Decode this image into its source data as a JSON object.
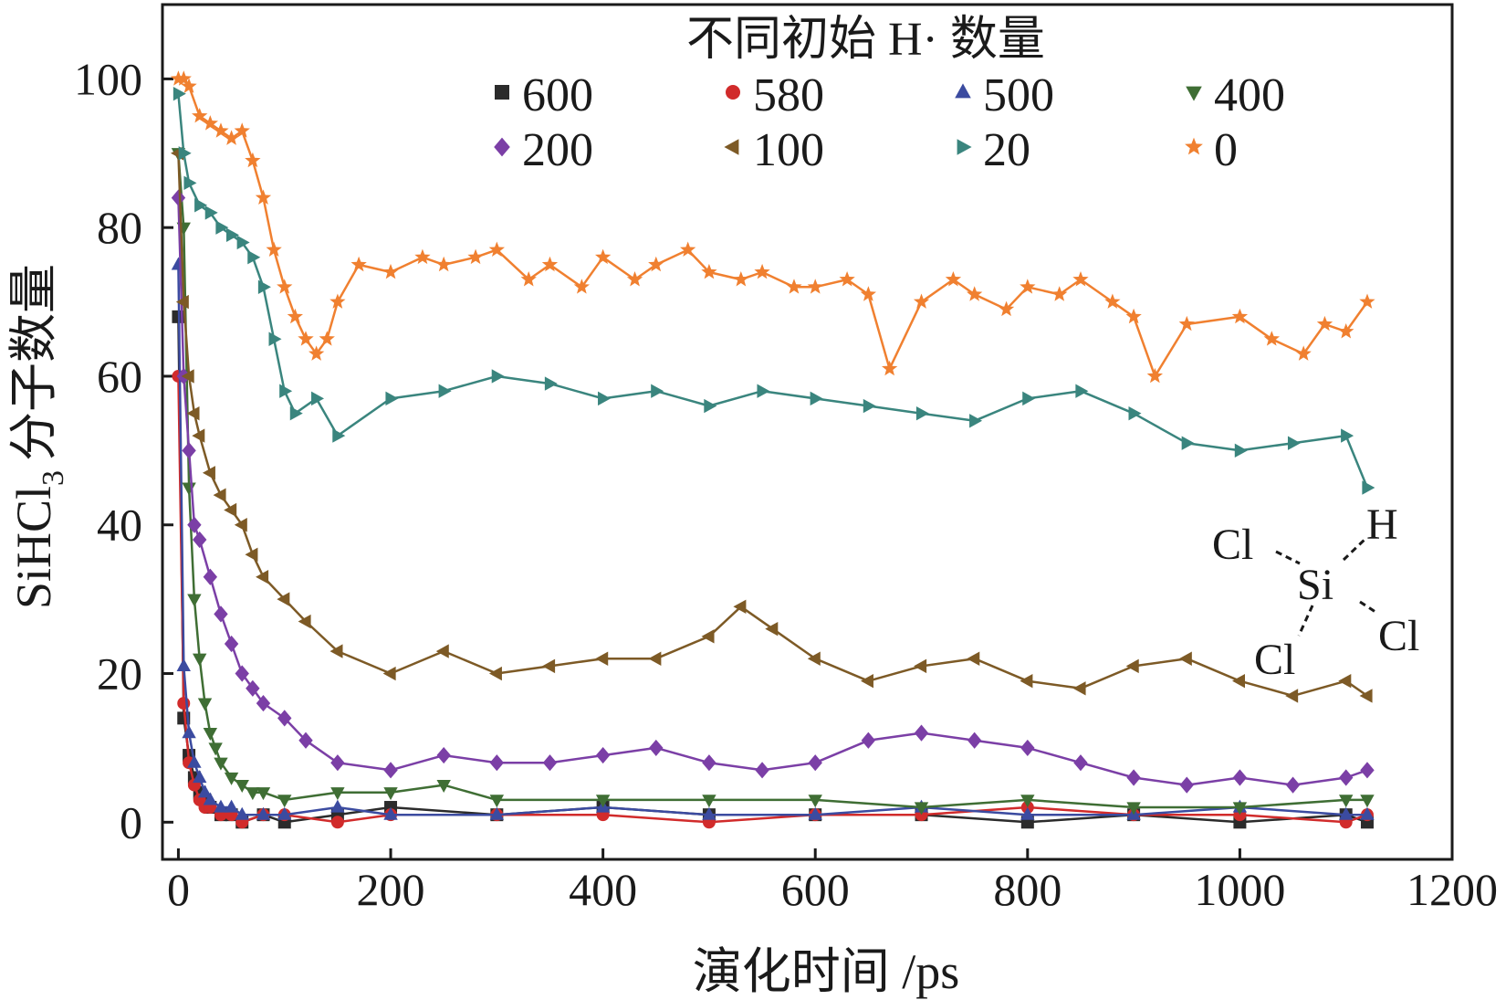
{
  "chart_data": {
    "type": "line",
    "xlabel": "演化时间 /ps",
    "ylabel": "SiHCl",
    "ylabel_subscript": "3",
    "ylabel_suffix": "分子数量",
    "xlim": [
      -15,
      1200
    ],
    "ylim": [
      -5,
      110
    ],
    "xticks": [
      0,
      200,
      400,
      600,
      800,
      1000,
      1200
    ],
    "yticks": [
      0,
      20,
      40,
      60,
      80,
      100
    ],
    "legend_title": "不同初始 H· 数量",
    "legend_position": "top-right",
    "molecule_inset": {
      "atoms": [
        "Cl",
        "H",
        "Si",
        "Cl",
        "Cl"
      ]
    },
    "series": [
      {
        "name": "600",
        "color": "#2b2b2b",
        "marker": "square",
        "x": [
          0,
          5,
          10,
          15,
          20,
          25,
          30,
          40,
          50,
          60,
          80,
          100,
          150,
          200,
          300,
          400,
          500,
          600,
          700,
          800,
          900,
          1000,
          1100,
          1120
        ],
        "y": [
          68,
          14,
          9,
          6,
          4,
          3,
          2,
          1,
          1,
          0,
          1,
          0,
          1,
          2,
          1,
          2,
          1,
          1,
          1,
          0,
          1,
          0,
          1,
          0
        ]
      },
      {
        "name": "580",
        "color": "#d12b2b",
        "marker": "circle",
        "x": [
          0,
          5,
          10,
          15,
          20,
          25,
          30,
          40,
          50,
          60,
          80,
          100,
          150,
          200,
          300,
          400,
          500,
          600,
          700,
          800,
          900,
          1000,
          1100,
          1120
        ],
        "y": [
          60,
          16,
          8,
          5,
          3,
          2,
          2,
          1,
          1,
          0,
          1,
          1,
          0,
          1,
          1,
          1,
          0,
          1,
          1,
          2,
          1,
          1,
          0,
          1
        ]
      },
      {
        "name": "500",
        "color": "#3b4ba0",
        "marker": "triangle-up",
        "x": [
          0,
          5,
          10,
          15,
          20,
          25,
          30,
          40,
          50,
          60,
          80,
          100,
          150,
          200,
          300,
          400,
          500,
          600,
          700,
          800,
          900,
          1000,
          1100,
          1120
        ],
        "y": [
          75,
          21,
          12,
          8,
          6,
          4,
          3,
          2,
          2,
          1,
          1,
          1,
          2,
          1,
          1,
          2,
          1,
          1,
          2,
          1,
          1,
          2,
          1,
          1
        ]
      },
      {
        "name": "400",
        "color": "#3f6e34",
        "marker": "triangle-down",
        "x": [
          0,
          5,
          10,
          15,
          20,
          25,
          30,
          35,
          40,
          50,
          60,
          70,
          80,
          100,
          150,
          200,
          250,
          300,
          400,
          500,
          600,
          700,
          800,
          900,
          1000,
          1100,
          1120
        ],
        "y": [
          90,
          80,
          45,
          30,
          22,
          16,
          12,
          10,
          8,
          6,
          5,
          4,
          4,
          3,
          4,
          4,
          5,
          3,
          3,
          3,
          3,
          2,
          3,
          2,
          2,
          3,
          3
        ]
      },
      {
        "name": "200",
        "color": "#7b3fa6",
        "marker": "diamond",
        "x": [
          0,
          5,
          10,
          15,
          20,
          30,
          40,
          50,
          60,
          70,
          80,
          100,
          120,
          150,
          200,
          250,
          300,
          350,
          400,
          450,
          500,
          550,
          600,
          650,
          700,
          750,
          800,
          850,
          900,
          950,
          1000,
          1050,
          1100,
          1120
        ],
        "y": [
          84,
          60,
          50,
          40,
          38,
          33,
          28,
          24,
          20,
          18,
          16,
          14,
          11,
          8,
          7,
          9,
          8,
          8,
          9,
          10,
          8,
          7,
          8,
          11,
          12,
          11,
          10,
          8,
          6,
          5,
          6,
          5,
          6,
          7
        ]
      },
      {
        "name": "100",
        "color": "#7d5a26",
        "marker": "triangle-left",
        "x": [
          0,
          5,
          10,
          15,
          20,
          30,
          40,
          50,
          60,
          70,
          80,
          100,
          120,
          150,
          200,
          250,
          300,
          350,
          400,
          450,
          500,
          530,
          560,
          600,
          650,
          700,
          750,
          800,
          850,
          900,
          950,
          1000,
          1050,
          1100,
          1120
        ],
        "y": [
          90,
          70,
          60,
          55,
          52,
          47,
          44,
          42,
          40,
          36,
          33,
          30,
          27,
          23,
          20,
          23,
          20,
          21,
          22,
          22,
          25,
          29,
          26,
          22,
          19,
          21,
          22,
          19,
          18,
          21,
          22,
          19,
          17,
          19,
          17
        ]
      },
      {
        "name": "20",
        "color": "#3a857e",
        "marker": "triangle-right",
        "x": [
          0,
          5,
          10,
          20,
          30,
          40,
          50,
          60,
          70,
          80,
          90,
          100,
          110,
          130,
          150,
          200,
          250,
          300,
          350,
          400,
          450,
          500,
          550,
          600,
          650,
          700,
          750,
          800,
          850,
          900,
          950,
          1000,
          1050,
          1100,
          1120
        ],
        "y": [
          98,
          90,
          86,
          83,
          82,
          80,
          79,
          78,
          76,
          72,
          65,
          58,
          55,
          57,
          52,
          57,
          58,
          60,
          59,
          57,
          58,
          56,
          58,
          57,
          56,
          55,
          54,
          57,
          58,
          55,
          51,
          50,
          51,
          52,
          45
        ]
      },
      {
        "name": "0",
        "color": "#f08030",
        "marker": "star",
        "x": [
          0,
          5,
          10,
          20,
          30,
          40,
          50,
          60,
          70,
          80,
          90,
          100,
          110,
          120,
          130,
          140,
          150,
          170,
          200,
          230,
          250,
          280,
          300,
          330,
          350,
          380,
          400,
          430,
          450,
          480,
          500,
          530,
          550,
          580,
          600,
          630,
          650,
          670,
          700,
          730,
          750,
          780,
          800,
          830,
          850,
          880,
          900,
          920,
          950,
          1000,
          1030,
          1060,
          1080,
          1100,
          1120
        ],
        "y": [
          100,
          100,
          99,
          95,
          94,
          93,
          92,
          93,
          89,
          84,
          77,
          72,
          68,
          65,
          63,
          65,
          70,
          75,
          74,
          76,
          75,
          76,
          77,
          73,
          75,
          72,
          76,
          73,
          75,
          77,
          74,
          73,
          74,
          72,
          72,
          73,
          71,
          61,
          70,
          73,
          71,
          69,
          72,
          71,
          73,
          70,
          68,
          60,
          67,
          68,
          65,
          63,
          67,
          66,
          70
        ]
      }
    ]
  }
}
